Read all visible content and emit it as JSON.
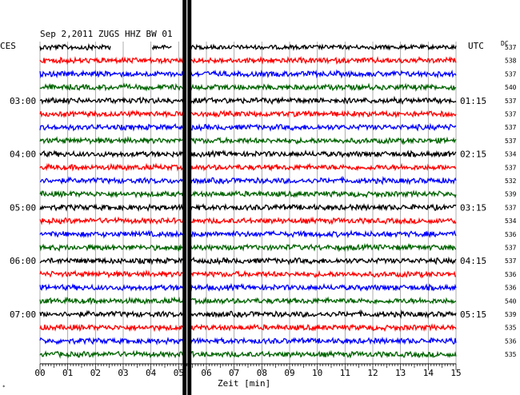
{
  "header": {
    "title": "Sep 2,2011   ZUGS HHZ BW 01",
    "left_timezone": "CES",
    "right_timezone": "UTC",
    "dc_label": "DC"
  },
  "chart_data": {
    "type": "line",
    "title": "Sep 2,2011   ZUGS HHZ BW 01",
    "xlabel": "Zeit [min]",
    "ylabel": "",
    "x_ticks": [
      "00",
      "01",
      "02",
      "03",
      "04",
      "05",
      "06",
      "07",
      "08",
      "09",
      "10",
      "11",
      "12",
      "13",
      "14",
      "15"
    ],
    "xlim": [
      0,
      15
    ],
    "grid": true,
    "left_hour_labels": [
      {
        "row": 4,
        "label": "03:00"
      },
      {
        "row": 8,
        "label": "04:00"
      },
      {
        "row": 12,
        "label": "05:00"
      },
      {
        "row": 16,
        "label": "06:00"
      },
      {
        "row": 20,
        "label": "07:00"
      }
    ],
    "right_hour_labels": [
      {
        "row": 4,
        "label": "01:15"
      },
      {
        "row": 8,
        "label": "02:15"
      },
      {
        "row": 12,
        "label": "03:15"
      },
      {
        "row": 16,
        "label": "04:15"
      },
      {
        "row": 20,
        "label": "05:15"
      }
    ],
    "trace_colors": [
      "#000000",
      "#ff0000",
      "#0000ff",
      "#006400"
    ],
    "dc_values": [
      "537",
      "538",
      "537",
      "540",
      "537",
      "537",
      "537",
      "537",
      "534",
      "537",
      "532",
      "539",
      "537",
      "534",
      "536",
      "537",
      "537",
      "536",
      "536",
      "540",
      "539",
      "535",
      "536",
      "535"
    ],
    "marker_minute": 5.3
  }
}
